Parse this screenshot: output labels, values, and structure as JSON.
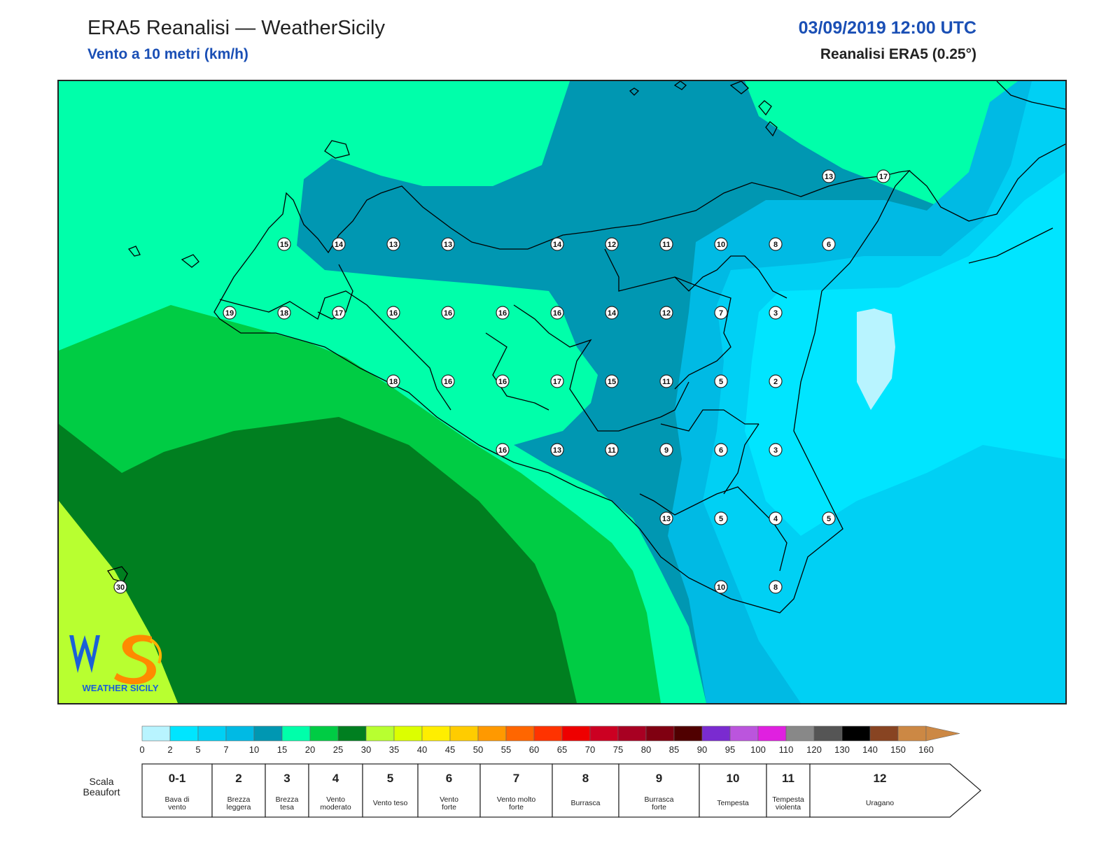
{
  "header": {
    "title": "ERA5 Reanalisi — WeatherSicily",
    "subtitle": "Vento a 10 metri (km/h)",
    "datetime": "03/09/2019 12:00 UTC",
    "source": "Reanalisi ERA5 (0.25°)"
  },
  "logo": {
    "text": "WEATHER SICILY",
    "mark": "WS"
  },
  "colors": {
    "c0": "#b8f4ff",
    "c2": "#00e5ff",
    "c5": "#00d0f4",
    "c7": "#00bae4",
    "c10": "#0097b2",
    "c15": "#00ffaa",
    "c20": "#00cc44",
    "c25": "#007f20",
    "c30": "#b8ff30",
    "land_outline": "#000000"
  },
  "colorbar": {
    "ticks": [
      "0",
      "2",
      "5",
      "7",
      "10",
      "15",
      "20",
      "25",
      "30",
      "35",
      "40",
      "45",
      "50",
      "55",
      "60",
      "65",
      "70",
      "75",
      "80",
      "85",
      "90",
      "95",
      "100",
      "110",
      "120",
      "130",
      "140",
      "150",
      "160"
    ],
    "colors": [
      "#b8f4ff",
      "#00e5ff",
      "#00d0f4",
      "#00bae4",
      "#0097b2",
      "#00ffaa",
      "#00cc44",
      "#007f20",
      "#b8ff30",
      "#dcff00",
      "#ffee00",
      "#ffcc00",
      "#ff9900",
      "#ff6600",
      "#ff3300",
      "#ee0000",
      "#cc0022",
      "#a80022",
      "#800011",
      "#500000",
      "#7a2bd0",
      "#bb55dd",
      "#e020e0",
      "#888888",
      "#555555",
      "#000000",
      "#884422",
      "#cc8844"
    ]
  },
  "beaufort": {
    "label_line1": "Scala",
    "label_line2": "Beaufort",
    "cells": [
      {
        "num": "0-1",
        "l1": "Bava di",
        "l2": "vento"
      },
      {
        "num": "2",
        "l1": "Brezza",
        "l2": "leggera"
      },
      {
        "num": "3",
        "l1": "Brezza",
        "l2": "tesa"
      },
      {
        "num": "4",
        "l1": "Vento",
        "l2": "moderato"
      },
      {
        "num": "5",
        "l1": "Vento teso",
        "l2": ""
      },
      {
        "num": "6",
        "l1": "Vento",
        "l2": "forte"
      },
      {
        "num": "7",
        "l1": "Vento molto",
        "l2": "forte"
      },
      {
        "num": "8",
        "l1": "Burrasca",
        "l2": ""
      },
      {
        "num": "9",
        "l1": "Burrasca",
        "l2": "forte"
      },
      {
        "num": "10",
        "l1": "Tempesta",
        "l2": ""
      },
      {
        "num": "11",
        "l1": "Tempesta",
        "l2": "violenta"
      },
      {
        "num": "12",
        "l1": "Uragano",
        "l2": ""
      }
    ]
  },
  "stations": [
    {
      "v": "13"
    },
    {
      "v": "17"
    },
    {
      "v": "15"
    },
    {
      "v": "14"
    },
    {
      "v": "13"
    },
    {
      "v": "13"
    },
    {
      "v": "14"
    },
    {
      "v": "12"
    },
    {
      "v": "11"
    },
    {
      "v": "10"
    },
    {
      "v": "8"
    },
    {
      "v": "6"
    },
    {
      "v": "19"
    },
    {
      "v": "18"
    },
    {
      "v": "17"
    },
    {
      "v": "16"
    },
    {
      "v": "16"
    },
    {
      "v": "16"
    },
    {
      "v": "16"
    },
    {
      "v": "14"
    },
    {
      "v": "12"
    },
    {
      "v": "7"
    },
    {
      "v": "3"
    },
    {
      "v": "18"
    },
    {
      "v": "16"
    },
    {
      "v": "16"
    },
    {
      "v": "17"
    },
    {
      "v": "15"
    },
    {
      "v": "11"
    },
    {
      "v": "5"
    },
    {
      "v": "2"
    },
    {
      "v": "16"
    },
    {
      "v": "13"
    },
    {
      "v": "11"
    },
    {
      "v": "9"
    },
    {
      "v": "6"
    },
    {
      "v": "3"
    },
    {
      "v": "13"
    },
    {
      "v": "5"
    },
    {
      "v": "4"
    },
    {
      "v": "5"
    },
    {
      "v": "10"
    },
    {
      "v": "8"
    },
    {
      "v": "30"
    }
  ]
}
